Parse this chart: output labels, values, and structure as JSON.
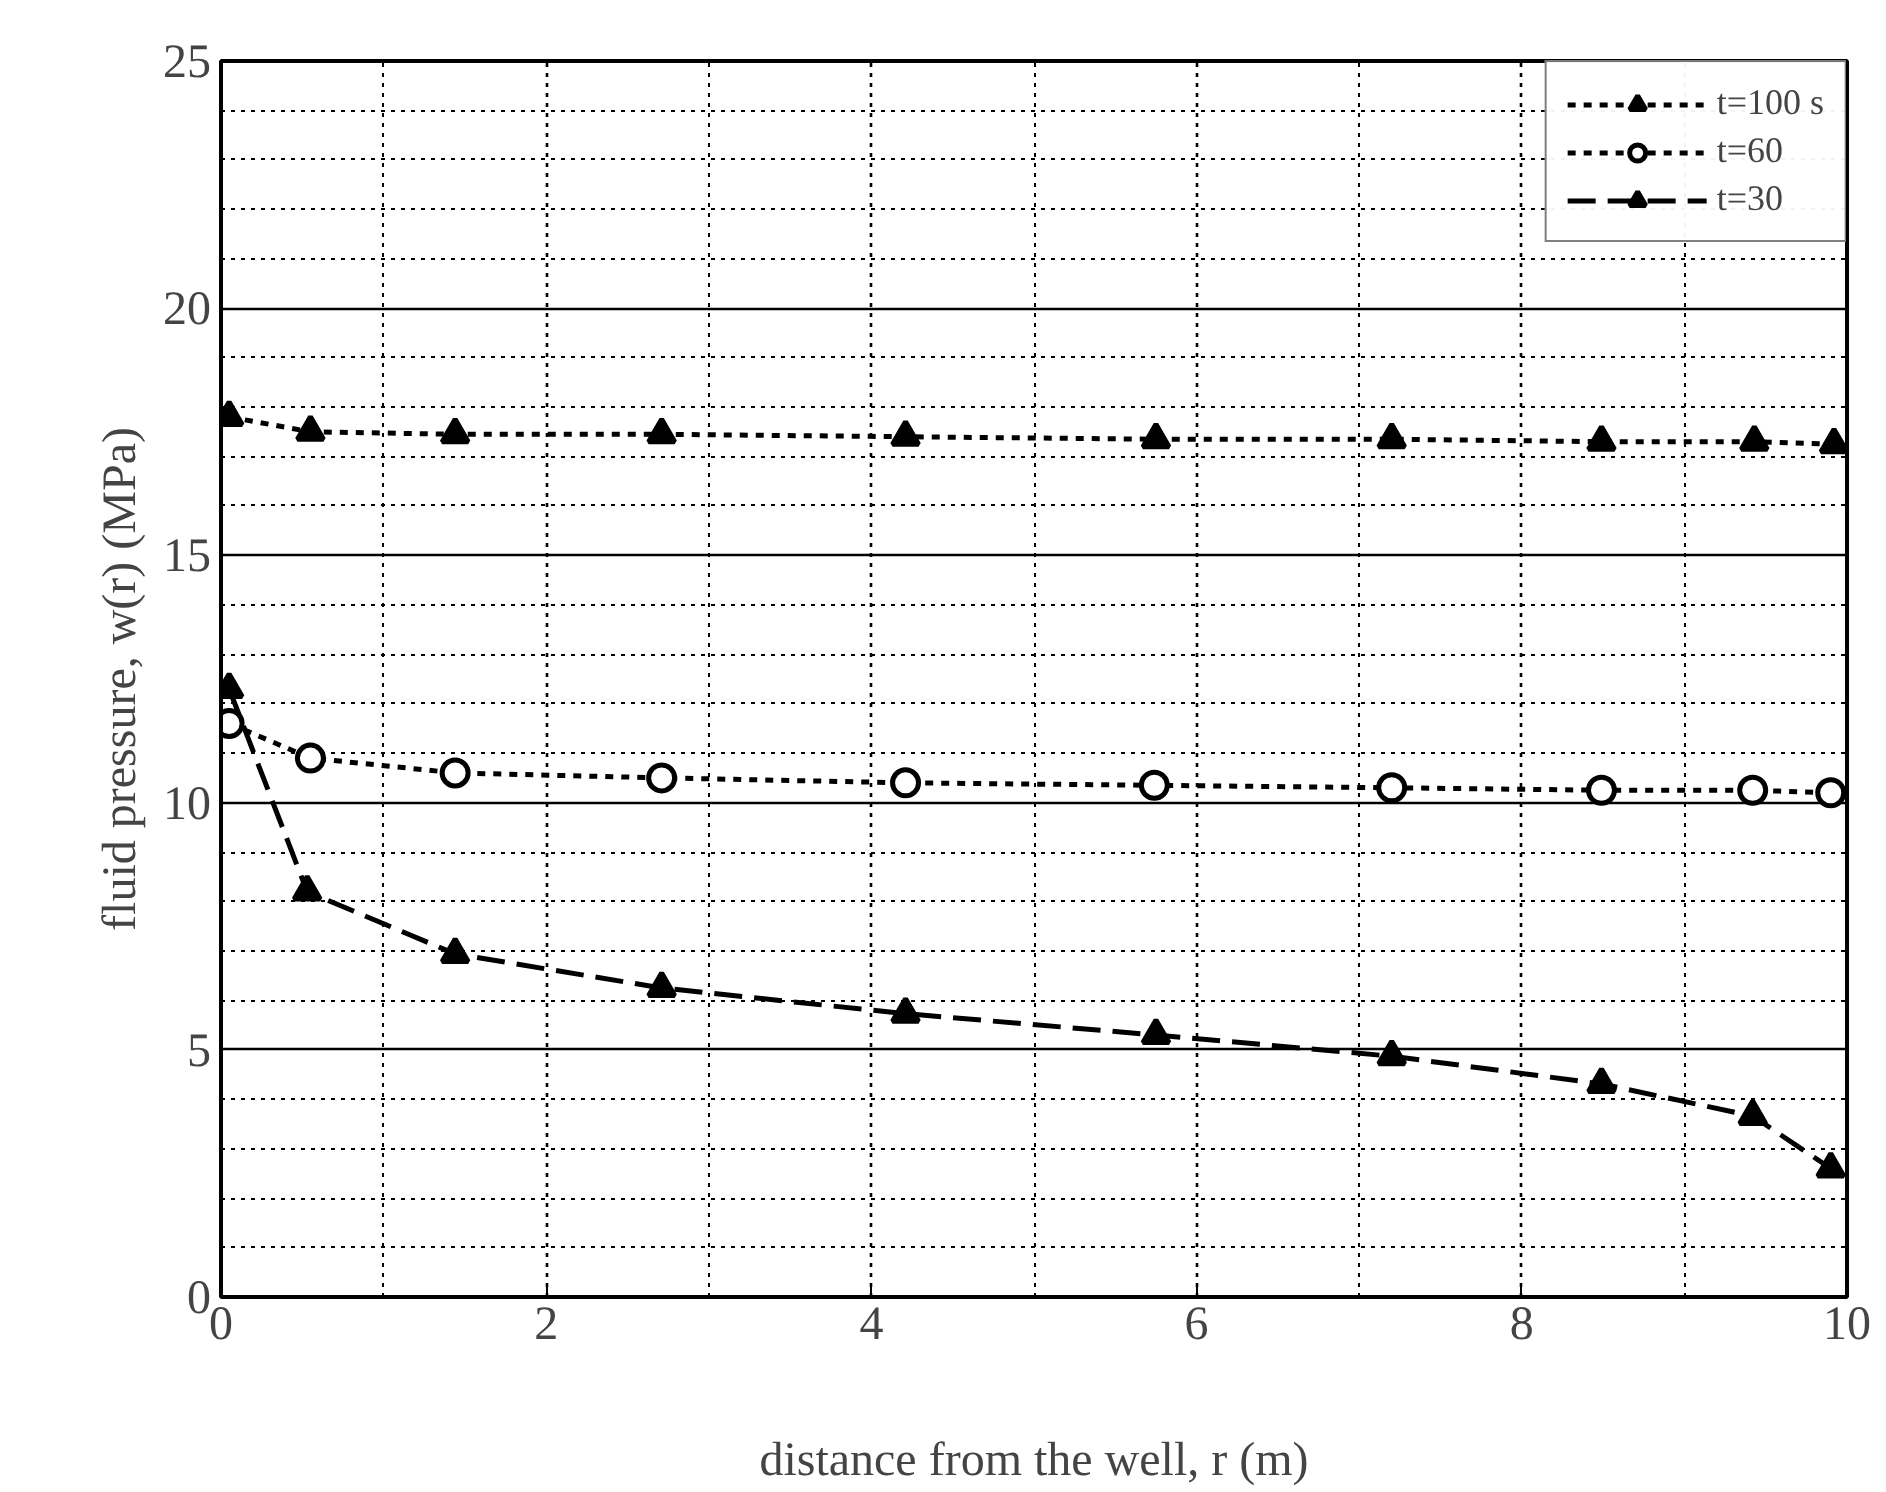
{
  "chart_data": {
    "type": "line",
    "xlabel": "distance from the well, r (m)",
    "ylabel": "fluid pressure, w(r) (MPa)",
    "xlim": [
      0,
      10
    ],
    "ylim": [
      0,
      25
    ],
    "xticks": [
      0,
      2,
      4,
      6,
      8,
      10
    ],
    "yticks": [
      0,
      5,
      10,
      15,
      20,
      25
    ],
    "grid": true,
    "legend": "top right",
    "series": [
      {
        "name": "t=100 s",
        "color": "#000000",
        "marker": "triangle",
        "line_style": "dotted",
        "x": [
          0.05,
          0.55,
          1.44,
          2.71,
          4.21,
          5.75,
          7.2,
          8.49,
          9.43,
          9.92
        ],
        "values": [
          17.8,
          17.5,
          17.45,
          17.45,
          17.4,
          17.35,
          17.35,
          17.3,
          17.3,
          17.25
        ]
      },
      {
        "name": "t=60",
        "color": "#000000",
        "marker": "circle",
        "line_style": "dotted",
        "x": [
          0.05,
          0.55,
          1.44,
          2.71,
          4.21,
          5.74,
          7.2,
          8.49,
          9.42,
          9.9
        ],
        "values": [
          11.6,
          10.9,
          10.6,
          10.5,
          10.4,
          10.35,
          10.3,
          10.25,
          10.25,
          10.2
        ]
      },
      {
        "name": "t=30",
        "color": "#000000",
        "marker": "triangle",
        "line_style": "dashed",
        "x": [
          0.05,
          0.53,
          1.44,
          2.71,
          4.21,
          5.75,
          7.2,
          8.49,
          9.42,
          9.9
        ],
        "values": [
          12.3,
          8.2,
          6.94,
          6.25,
          5.73,
          5.3,
          4.87,
          4.31,
          3.66,
          2.6
        ]
      }
    ]
  }
}
